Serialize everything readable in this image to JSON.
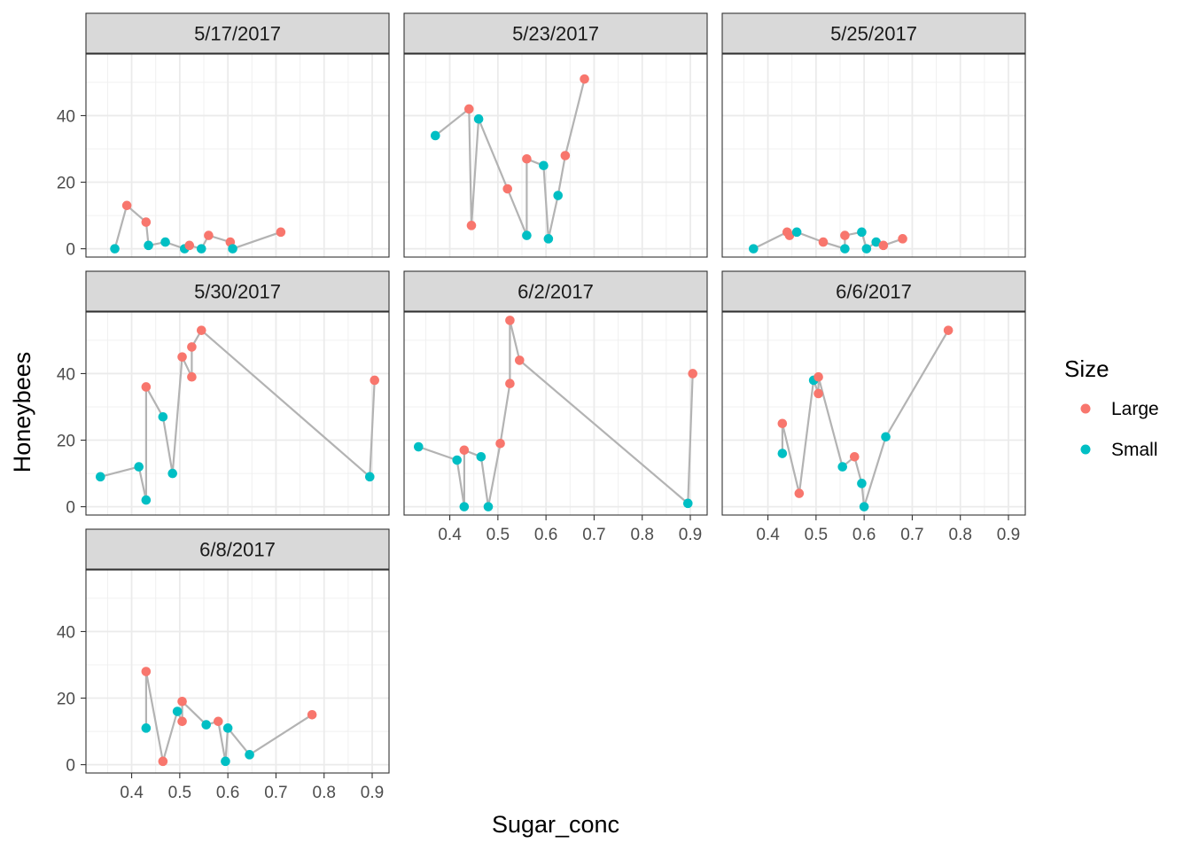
{
  "chart_data": {
    "type": "scatter",
    "connected": true,
    "xlabel": "Sugar_conc",
    "ylabel": "Honeybees",
    "xlim": [
      0.305,
      0.935
    ],
    "ylim": [
      -2.5,
      58.5
    ],
    "x_ticks": [
      0.4,
      0.5,
      0.6,
      0.7,
      0.8,
      0.9
    ],
    "y_ticks": [
      0,
      20,
      40
    ],
    "x_tick_labels": [
      "0.4",
      "0.5",
      "0.6",
      "0.7",
      "0.8",
      "0.9"
    ],
    "y_tick_labels": [
      "0",
      "20",
      "40"
    ],
    "grid": true,
    "legend": {
      "title": "Size",
      "position": "right",
      "entries": [
        {
          "label": "Large",
          "color": "#F8766D"
        },
        {
          "label": "Small",
          "color": "#00BFC4"
        }
      ]
    },
    "line_color": "#B3B3B3",
    "panels": [
      {
        "label": "5/17/2017",
        "points": [
          {
            "x": 0.365,
            "y": 0,
            "size": "Small"
          },
          {
            "x": 0.39,
            "y": 13,
            "size": "Large"
          },
          {
            "x": 0.43,
            "y": 8,
            "size": "Large"
          },
          {
            "x": 0.435,
            "y": 1,
            "size": "Small"
          },
          {
            "x": 0.47,
            "y": 2,
            "size": "Small"
          },
          {
            "x": 0.51,
            "y": 0,
            "size": "Small"
          },
          {
            "x": 0.52,
            "y": 1,
            "size": "Large"
          },
          {
            "x": 0.545,
            "y": 0,
            "size": "Small"
          },
          {
            "x": 0.56,
            "y": 4,
            "size": "Large"
          },
          {
            "x": 0.605,
            "y": 2,
            "size": "Large"
          },
          {
            "x": 0.61,
            "y": 0,
            "size": "Small"
          },
          {
            "x": 0.71,
            "y": 5,
            "size": "Large"
          }
        ]
      },
      {
        "label": "5/23/2017",
        "points": [
          {
            "x": 0.37,
            "y": 34,
            "size": "Small"
          },
          {
            "x": 0.44,
            "y": 42,
            "size": "Large"
          },
          {
            "x": 0.445,
            "y": 7,
            "size": "Large"
          },
          {
            "x": 0.46,
            "y": 39,
            "size": "Small"
          },
          {
            "x": 0.52,
            "y": 18,
            "size": "Large"
          },
          {
            "x": 0.56,
            "y": 27,
            "size": "Large"
          },
          {
            "x": 0.56,
            "y": 4,
            "size": "Small"
          },
          {
            "x": 0.595,
            "y": 25,
            "size": "Small"
          },
          {
            "x": 0.605,
            "y": 3,
            "size": "Small"
          },
          {
            "x": 0.625,
            "y": 16,
            "size": "Small"
          },
          {
            "x": 0.64,
            "y": 28,
            "size": "Large"
          },
          {
            "x": 0.68,
            "y": 51,
            "size": "Large"
          }
        ]
      },
      {
        "label": "5/25/2017",
        "points": [
          {
            "x": 0.37,
            "y": 0,
            "size": "Small"
          },
          {
            "x": 0.44,
            "y": 5,
            "size": "Large"
          },
          {
            "x": 0.445,
            "y": 4,
            "size": "Large"
          },
          {
            "x": 0.46,
            "y": 5,
            "size": "Small"
          },
          {
            "x": 0.515,
            "y": 2,
            "size": "Large"
          },
          {
            "x": 0.56,
            "y": 0,
            "size": "Small"
          },
          {
            "x": 0.56,
            "y": 4,
            "size": "Large"
          },
          {
            "x": 0.595,
            "y": 5,
            "size": "Small"
          },
          {
            "x": 0.605,
            "y": 0,
            "size": "Small"
          },
          {
            "x": 0.625,
            "y": 2,
            "size": "Small"
          },
          {
            "x": 0.64,
            "y": 1,
            "size": "Large"
          },
          {
            "x": 0.68,
            "y": 3,
            "size": "Large"
          }
        ]
      },
      {
        "label": "5/30/2017",
        "points": [
          {
            "x": 0.335,
            "y": 9,
            "size": "Small"
          },
          {
            "x": 0.415,
            "y": 12,
            "size": "Small"
          },
          {
            "x": 0.43,
            "y": 36,
            "size": "Large"
          },
          {
            "x": 0.43,
            "y": 2,
            "size": "Small"
          },
          {
            "x": 0.465,
            "y": 27,
            "size": "Small"
          },
          {
            "x": 0.485,
            "y": 10,
            "size": "Small"
          },
          {
            "x": 0.505,
            "y": 45,
            "size": "Large"
          },
          {
            "x": 0.525,
            "y": 48,
            "size": "Large"
          },
          {
            "x": 0.525,
            "y": 39,
            "size": "Large"
          },
          {
            "x": 0.545,
            "y": 53,
            "size": "Large"
          },
          {
            "x": 0.895,
            "y": 9,
            "size": "Small"
          },
          {
            "x": 0.905,
            "y": 38,
            "size": "Large"
          }
        ]
      },
      {
        "label": "6/2/2017",
        "points": [
          {
            "x": 0.335,
            "y": 18,
            "size": "Small"
          },
          {
            "x": 0.415,
            "y": 14,
            "size": "Small"
          },
          {
            "x": 0.43,
            "y": 17,
            "size": "Large"
          },
          {
            "x": 0.43,
            "y": 0,
            "size": "Small"
          },
          {
            "x": 0.465,
            "y": 15,
            "size": "Small"
          },
          {
            "x": 0.48,
            "y": 0,
            "size": "Small"
          },
          {
            "x": 0.505,
            "y": 19,
            "size": "Large"
          },
          {
            "x": 0.525,
            "y": 56,
            "size": "Large"
          },
          {
            "x": 0.525,
            "y": 37,
            "size": "Large"
          },
          {
            "x": 0.545,
            "y": 44,
            "size": "Large"
          },
          {
            "x": 0.895,
            "y": 1,
            "size": "Small"
          },
          {
            "x": 0.905,
            "y": 40,
            "size": "Large"
          }
        ]
      },
      {
        "label": "6/6/2017",
        "points": [
          {
            "x": 0.43,
            "y": 25,
            "size": "Large"
          },
          {
            "x": 0.43,
            "y": 16,
            "size": "Small"
          },
          {
            "x": 0.465,
            "y": 4,
            "size": "Large"
          },
          {
            "x": 0.495,
            "y": 38,
            "size": "Small"
          },
          {
            "x": 0.505,
            "y": 39,
            "size": "Large"
          },
          {
            "x": 0.505,
            "y": 34,
            "size": "Large"
          },
          {
            "x": 0.555,
            "y": 12,
            "size": "Small"
          },
          {
            "x": 0.58,
            "y": 15,
            "size": "Large"
          },
          {
            "x": 0.595,
            "y": 7,
            "size": "Small"
          },
          {
            "x": 0.6,
            "y": 0,
            "size": "Small"
          },
          {
            "x": 0.645,
            "y": 21,
            "size": "Small"
          },
          {
            "x": 0.775,
            "y": 53,
            "size": "Large"
          }
        ]
      },
      {
        "label": "6/8/2017",
        "points": [
          {
            "x": 0.43,
            "y": 28,
            "size": "Large"
          },
          {
            "x": 0.43,
            "y": 11,
            "size": "Small"
          },
          {
            "x": 0.465,
            "y": 1,
            "size": "Large"
          },
          {
            "x": 0.495,
            "y": 16,
            "size": "Small"
          },
          {
            "x": 0.505,
            "y": 19,
            "size": "Large"
          },
          {
            "x": 0.505,
            "y": 13,
            "size": "Large"
          },
          {
            "x": 0.555,
            "y": 12,
            "size": "Small"
          },
          {
            "x": 0.58,
            "y": 13,
            "size": "Large"
          },
          {
            "x": 0.595,
            "y": 1,
            "size": "Small"
          },
          {
            "x": 0.6,
            "y": 11,
            "size": "Small"
          },
          {
            "x": 0.645,
            "y": 3,
            "size": "Small"
          },
          {
            "x": 0.775,
            "y": 15,
            "size": "Large"
          }
        ]
      }
    ]
  }
}
